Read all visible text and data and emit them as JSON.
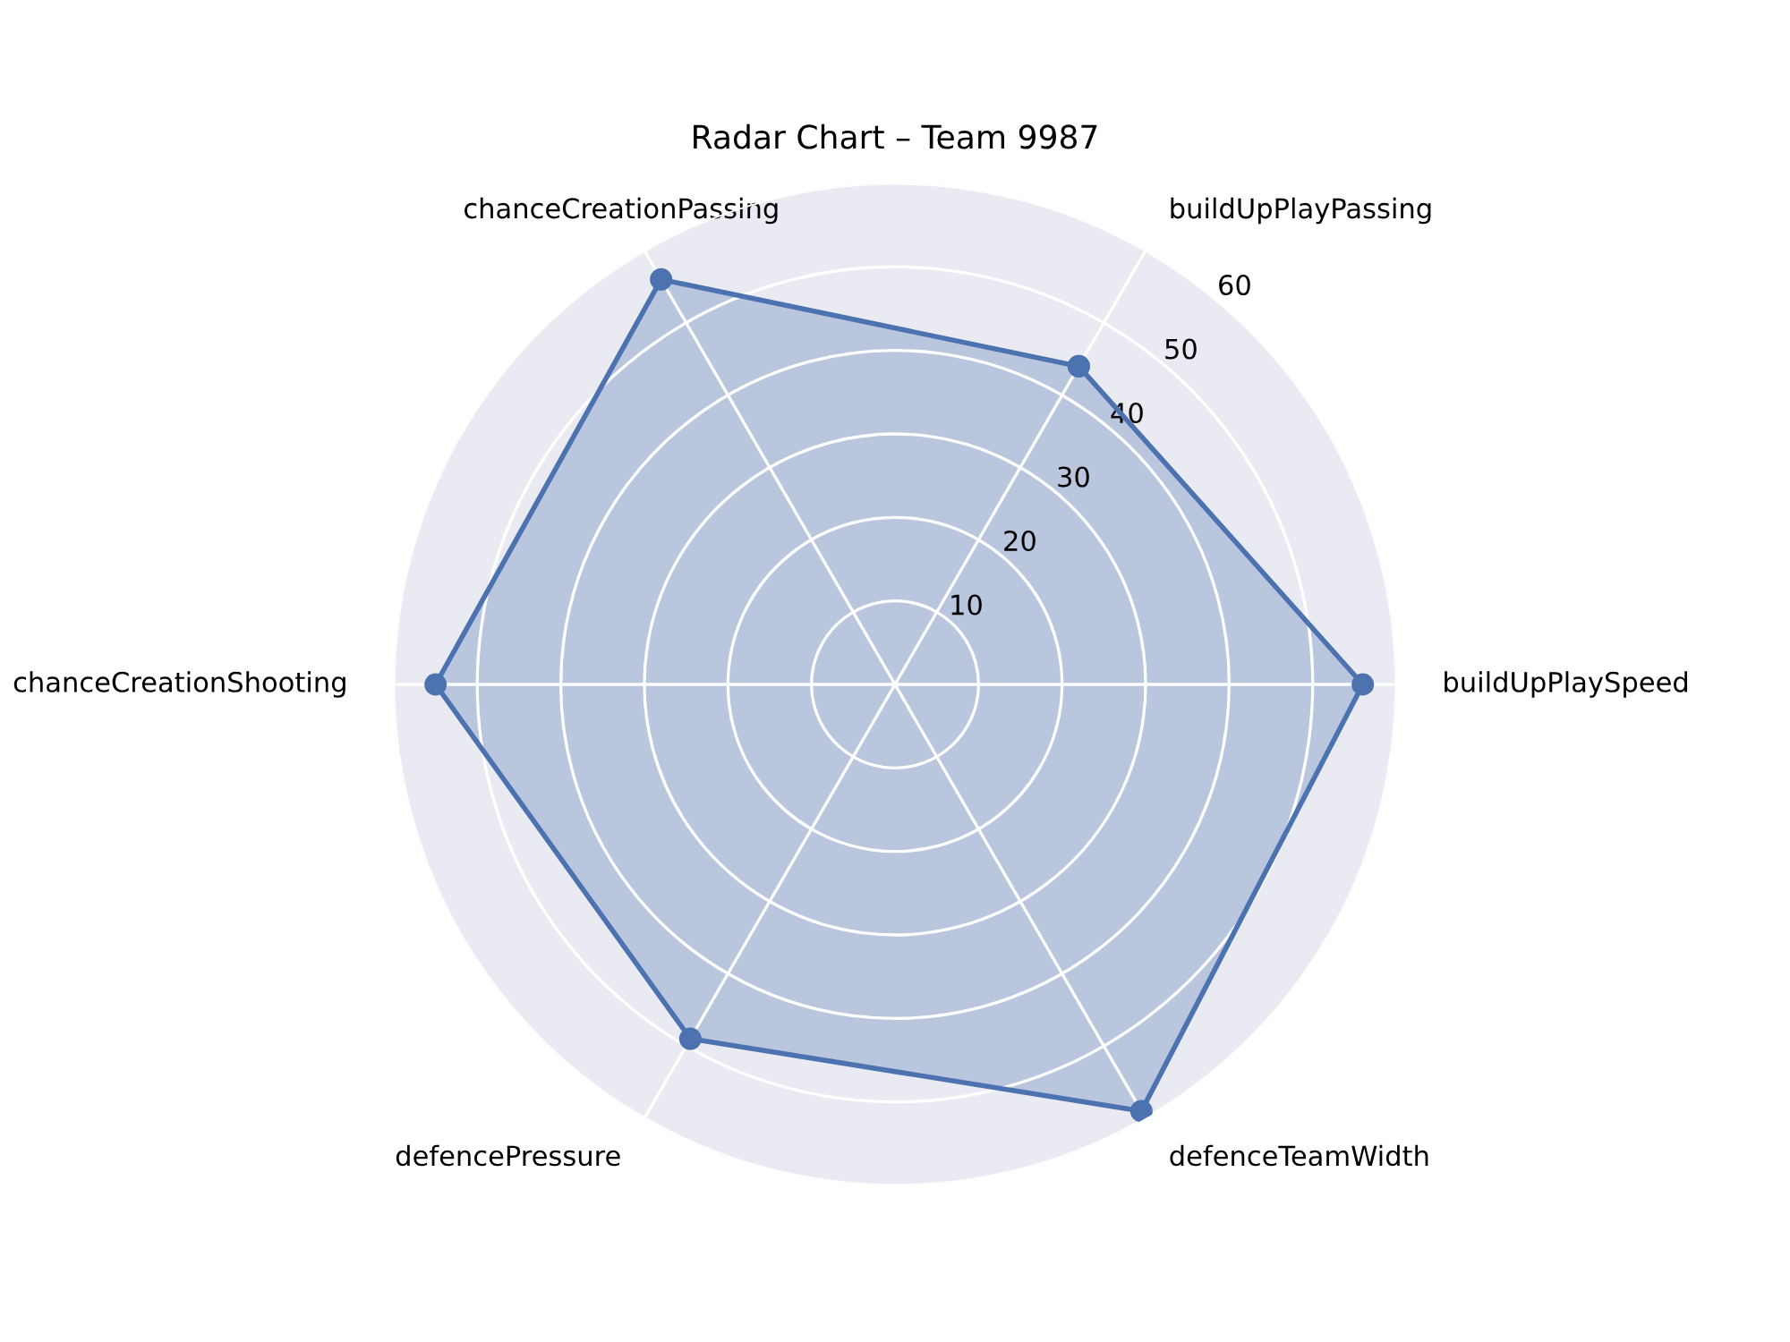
{
  "chart_data": {
    "type": "radar",
    "title": "Radar Chart – Team 9987",
    "categories": [
      "buildUpPlayPassing",
      "buildUpPlaySpeed",
      "defenceTeamWidth",
      "defencePressure",
      "chanceCreationShooting",
      "chanceCreationPassing"
    ],
    "series": [
      {
        "color": "#4c72b0",
        "values": [
          44,
          56,
          59,
          49,
          55,
          56
        ]
      }
    ],
    "ylim": [
      0,
      60
    ],
    "yticks": [
      10,
      20,
      30,
      40,
      50,
      60
    ],
    "grid": true,
    "marker": "circle",
    "line_style": "solid"
  }
}
